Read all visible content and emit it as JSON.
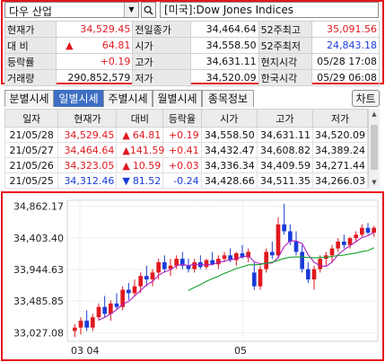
{
  "header": {
    "symbol_name": "다우 산업",
    "index_title": "[미국]:Dow Jones Indices"
  },
  "quote": {
    "rows": [
      {
        "l1": "현재가",
        "v1": "34,529.45",
        "c1": "red",
        "l2": "전일종가",
        "v2": "34,464.64",
        "c2": "",
        "l3": "52주최고",
        "v3": "35,091.56",
        "c3": "red"
      },
      {
        "l1": "대  비",
        "v1": "64.81",
        "c1": "red",
        "arrow": "▲",
        "l2": "시가",
        "v2": "34,558.50",
        "c2": "",
        "l3": "52주최저",
        "v3": "24,843.18",
        "c3": "blue"
      },
      {
        "l1": "등락률",
        "v1": "+0.19",
        "c1": "red",
        "l2": "고가",
        "v2": "34,631.11",
        "c2": "",
        "l3": "현지시각",
        "v3": "05/28 17:08",
        "c3": ""
      },
      {
        "l1": "거래량",
        "v1": "290,852,579",
        "c1": "",
        "l2": "저가",
        "v2": "34,520.09",
        "c2": "",
        "l3": "한국시각",
        "v3": "05/29 06:08",
        "c3": ""
      }
    ]
  },
  "tabs": [
    "분별시세",
    "일별시세",
    "주별시세",
    "월별시세",
    "종목정보"
  ],
  "chart_button": "차트",
  "daily": {
    "headers": [
      "일자",
      "현재가",
      "대비",
      "등락율",
      "시가",
      "고가",
      "저가"
    ],
    "rows": [
      {
        "date": "21/05/28",
        "price": "34,529.45",
        "pc": "red",
        "arrow": "▲",
        "chg": "64.81",
        "pct": "+0.19",
        "open": "34,558.50",
        "high": "34,631.11",
        "low": "34,520.09"
      },
      {
        "date": "21/05/27",
        "price": "34,464.64",
        "pc": "red",
        "arrow": "▲",
        "chg": "141.59",
        "pct": "+0.41",
        "open": "34,432.47",
        "high": "34,608.82",
        "low": "34,389.24"
      },
      {
        "date": "21/05/26",
        "price": "34,323.05",
        "pc": "red",
        "arrow": "▲",
        "chg": "10.59",
        "pct": "+0.03",
        "open": "34,336.34",
        "high": "34,409.59",
        "low": "34,271.44"
      },
      {
        "date": "21/05/25",
        "price": "34,312.46",
        "pc": "blue",
        "arrow": "▼",
        "chg": "81.52",
        "pct": "-0.24",
        "open": "34,428.66",
        "high": "34,511.35",
        "low": "34,266.03"
      }
    ]
  },
  "colors": {
    "up": "#e0191f",
    "down": "#1a3cd8",
    "highlight": "#e5151c",
    "tab_active": "#3e6fc3"
  },
  "chart_data": {
    "type": "candlestick",
    "y_ticks": [
      "34,862.17",
      "34,403.40",
      "33,944.63",
      "33,485.85",
      "33,027.08"
    ],
    "x_ticks": [
      "03 04",
      "05"
    ],
    "ylim": [
      32900,
      34950
    ],
    "candles": [
      [
        33050,
        33150,
        32960,
        33100
      ],
      [
        33100,
        33250,
        33000,
        33200
      ],
      [
        33200,
        33350,
        33050,
        33100
      ],
      [
        33100,
        33300,
        33050,
        33250
      ],
      [
        33250,
        33450,
        33200,
        33400
      ],
      [
        33400,
        33560,
        33250,
        33300
      ],
      [
        33300,
        33500,
        33200,
        33450
      ],
      [
        33450,
        33600,
        33350,
        33400
      ],
      [
        33400,
        33700,
        33350,
        33650
      ],
      [
        33650,
        33750,
        33500,
        33600
      ],
      [
        33600,
        33800,
        33550,
        33700
      ],
      [
        33700,
        33900,
        33600,
        33850
      ],
      [
        33850,
        34000,
        33700,
        33800
      ],
      [
        33800,
        33950,
        33700,
        33900
      ],
      [
        33900,
        34100,
        33800,
        34050
      ],
      [
        34050,
        34150,
        33900,
        33950
      ],
      [
        33950,
        34100,
        33850,
        34000
      ],
      [
        34000,
        34150,
        33950,
        34100
      ],
      [
        34100,
        34200,
        33950,
        34000
      ],
      [
        34000,
        34100,
        33900,
        33950
      ],
      [
        33950,
        34100,
        33900,
        34050
      ],
      [
        34050,
        34150,
        33950,
        33980
      ],
      [
        33980,
        34100,
        33950,
        34080
      ],
      [
        34080,
        34200,
        34000,
        34020
      ],
      [
        34020,
        34150,
        33950,
        34100
      ],
      [
        34100,
        34200,
        34050,
        34150
      ],
      [
        34150,
        34250,
        34050,
        34080
      ],
      [
        34080,
        34200,
        34000,
        34180
      ],
      [
        34180,
        34300,
        34100,
        34120
      ],
      [
        34120,
        34250,
        34050,
        34200
      ],
      [
        33900,
        34050,
        33650,
        33700
      ],
      [
        33700,
        34000,
        33650,
        33950
      ],
      [
        33950,
        34250,
        33900,
        34200
      ],
      [
        34200,
        34350,
        34100,
        34150
      ],
      [
        34150,
        34700,
        34100,
        34600
      ],
      [
        34600,
        34900,
        34450,
        34500
      ],
      [
        34500,
        34600,
        34300,
        34350
      ],
      [
        34350,
        34500,
        34150,
        34200
      ],
      [
        34200,
        34300,
        33900,
        33950
      ],
      [
        33950,
        34050,
        33750,
        33800
      ],
      [
        33800,
        34000,
        33650,
        33950
      ],
      [
        33950,
        34150,
        33900,
        34100
      ],
      [
        34100,
        34200,
        34000,
        34150
      ],
      [
        34150,
        34300,
        34050,
        34250
      ],
      [
        34250,
        34400,
        34200,
        34350
      ],
      [
        34350,
        34450,
        34250,
        34300
      ],
      [
        34300,
        34420,
        34250,
        34400
      ],
      [
        34400,
        34500,
        34350,
        34450
      ],
      [
        34450,
        34600,
        34420,
        34550
      ],
      [
        34550,
        34620,
        34450,
        34480
      ],
      [
        34480,
        34580,
        34420,
        34550
      ]
    ]
  }
}
